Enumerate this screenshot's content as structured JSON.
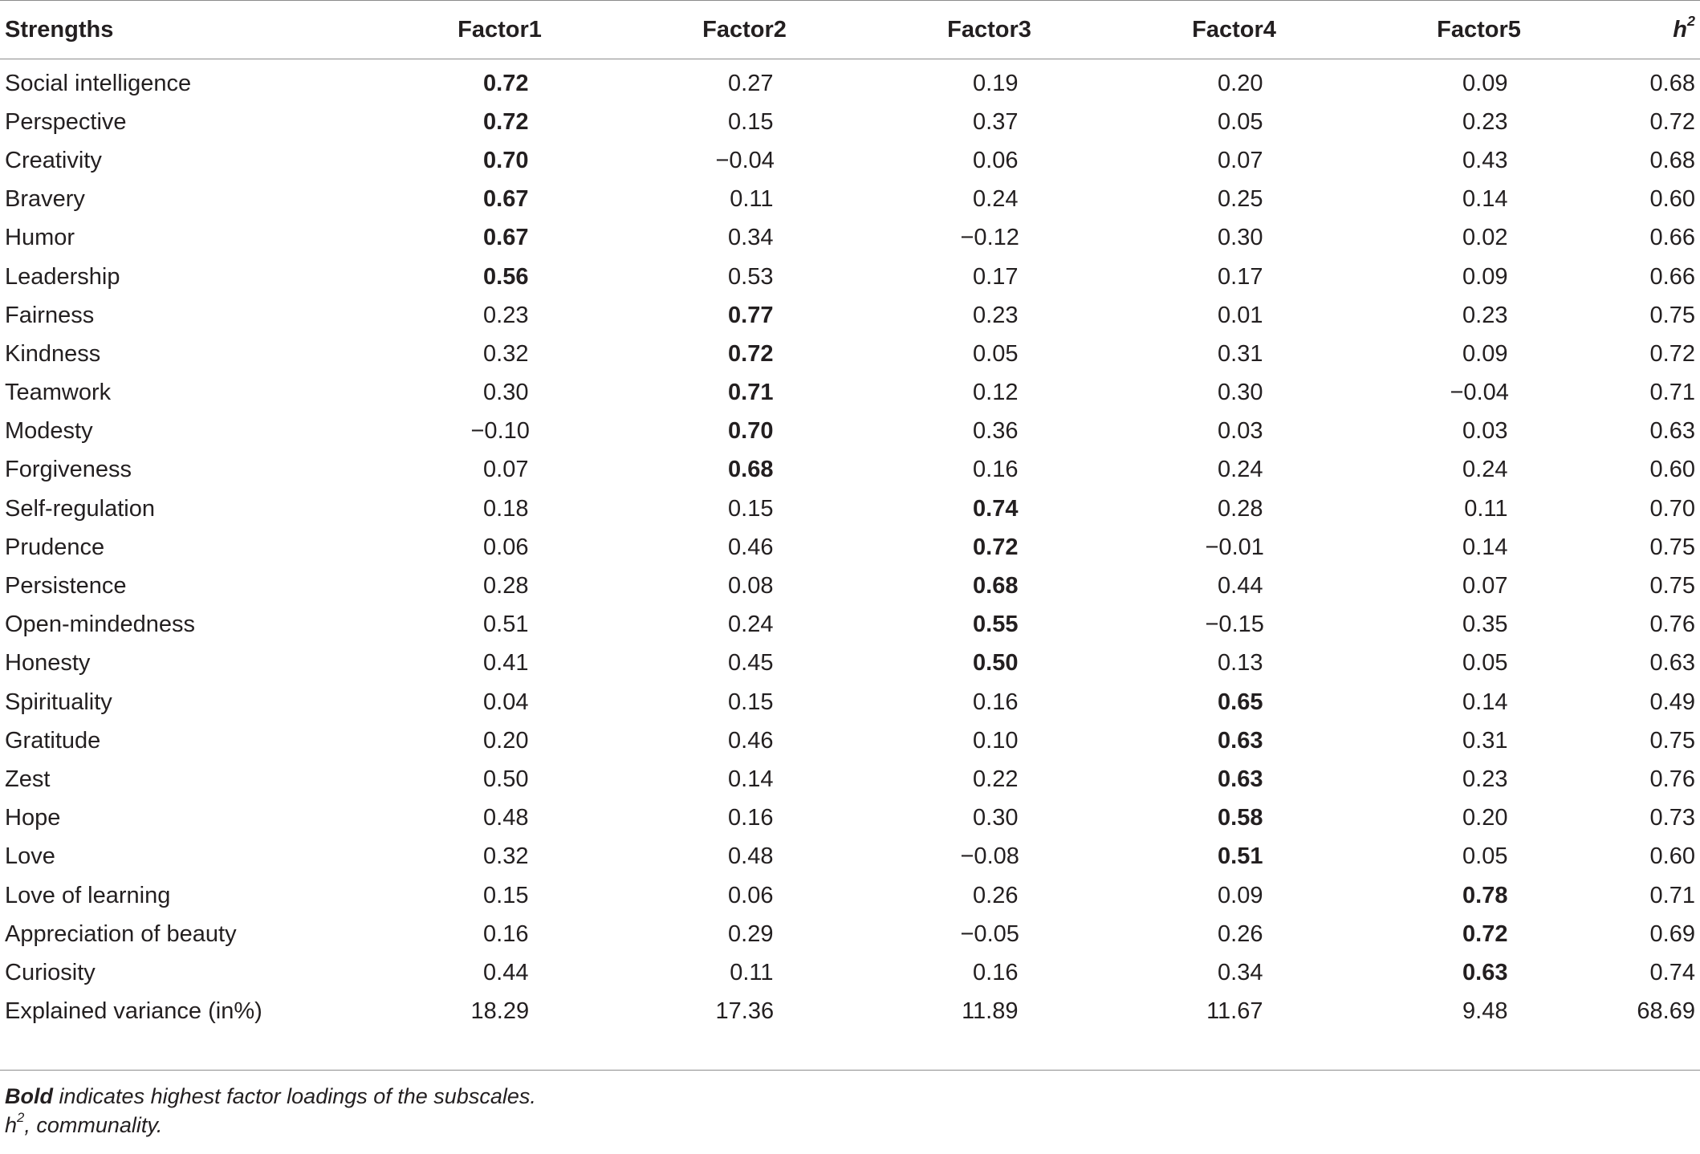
{
  "table": {
    "headers": {
      "strengths": "Strengths",
      "factors": [
        "Factor1",
        "Factor2",
        "Factor3",
        "Factor4",
        "Factor5"
      ],
      "h2_base": "h",
      "h2_sup": "2"
    },
    "rows": [
      {
        "name": "Social intelligence",
        "values": [
          "0.72",
          "0.27",
          "0.19",
          "0.20",
          "0.09"
        ],
        "h2": "0.68",
        "bold": 0
      },
      {
        "name": "Perspective",
        "values": [
          "0.72",
          "0.15",
          "0.37",
          "0.05",
          "0.23"
        ],
        "h2": "0.72",
        "bold": 0
      },
      {
        "name": "Creativity",
        "values": [
          "0.70",
          "−0.04",
          "0.06",
          "0.07",
          "0.43"
        ],
        "h2": "0.68",
        "bold": 0
      },
      {
        "name": "Bravery",
        "values": [
          "0.67",
          "0.11",
          "0.24",
          "0.25",
          "0.14"
        ],
        "h2": "0.60",
        "bold": 0
      },
      {
        "name": "Humor",
        "values": [
          "0.67",
          "0.34",
          "−0.12",
          "0.30",
          "0.02"
        ],
        "h2": "0.66",
        "bold": 0
      },
      {
        "name": "Leadership",
        "values": [
          "0.56",
          "0.53",
          "0.17",
          "0.17",
          "0.09"
        ],
        "h2": "0.66",
        "bold": 0
      },
      {
        "name": "Fairness",
        "values": [
          "0.23",
          "0.77",
          "0.23",
          "0.01",
          "0.23"
        ],
        "h2": "0.75",
        "bold": 1
      },
      {
        "name": "Kindness",
        "values": [
          "0.32",
          "0.72",
          "0.05",
          "0.31",
          "0.09"
        ],
        "h2": "0.72",
        "bold": 1
      },
      {
        "name": "Teamwork",
        "values": [
          "0.30",
          "0.71",
          "0.12",
          "0.30",
          "−0.04"
        ],
        "h2": "0.71",
        "bold": 1
      },
      {
        "name": "Modesty",
        "values": [
          "−0.10",
          "0.70",
          "0.36",
          "0.03",
          "0.03"
        ],
        "h2": "0.63",
        "bold": 1
      },
      {
        "name": "Forgiveness",
        "values": [
          "0.07",
          "0.68",
          "0.16",
          "0.24",
          "0.24"
        ],
        "h2": "0.60",
        "bold": 1
      },
      {
        "name": "Self-regulation",
        "values": [
          "0.18",
          "0.15",
          "0.74",
          "0.28",
          "0.11"
        ],
        "h2": "0.70",
        "bold": 2
      },
      {
        "name": "Prudence",
        "values": [
          "0.06",
          "0.46",
          "0.72",
          "−0.01",
          "0.14"
        ],
        "h2": "0.75",
        "bold": 2
      },
      {
        "name": "Persistence",
        "values": [
          "0.28",
          "0.08",
          "0.68",
          "0.44",
          "0.07"
        ],
        "h2": "0.75",
        "bold": 2
      },
      {
        "name": "Open-mindedness",
        "values": [
          "0.51",
          "0.24",
          "0.55",
          "−0.15",
          "0.35"
        ],
        "h2": "0.76",
        "bold": 2
      },
      {
        "name": "Honesty",
        "values": [
          "0.41",
          "0.45",
          "0.50",
          "0.13",
          "0.05"
        ],
        "h2": "0.63",
        "bold": 2
      },
      {
        "name": "Spirituality",
        "values": [
          "0.04",
          "0.15",
          "0.16",
          "0.65",
          "0.14"
        ],
        "h2": "0.49",
        "bold": 3
      },
      {
        "name": "Gratitude",
        "values": [
          "0.20",
          "0.46",
          "0.10",
          "0.63",
          "0.31"
        ],
        "h2": "0.75",
        "bold": 3
      },
      {
        "name": "Zest",
        "values": [
          "0.50",
          "0.14",
          "0.22",
          "0.63",
          "0.23"
        ],
        "h2": "0.76",
        "bold": 3
      },
      {
        "name": "Hope",
        "values": [
          "0.48",
          "0.16",
          "0.30",
          "0.58",
          "0.20"
        ],
        "h2": "0.73",
        "bold": 3
      },
      {
        "name": "Love",
        "values": [
          "0.32",
          "0.48",
          "−0.08",
          "0.51",
          "0.05"
        ],
        "h2": "0.60",
        "bold": 3
      },
      {
        "name": "Love of learning",
        "values": [
          "0.15",
          "0.06",
          "0.26",
          "0.09",
          "0.78"
        ],
        "h2": "0.71",
        "bold": 4
      },
      {
        "name": "Appreciation of beauty",
        "values": [
          "0.16",
          "0.29",
          "−0.05",
          "0.26",
          "0.72"
        ],
        "h2": "0.69",
        "bold": 4
      },
      {
        "name": "Curiosity",
        "values": [
          "0.44",
          "0.11",
          "0.16",
          "0.34",
          "0.63"
        ],
        "h2": "0.74",
        "bold": 4
      },
      {
        "name": "Explained variance (in%)",
        "values": [
          "18.29",
          "17.36",
          "11.89",
          "11.67",
          "9.48"
        ],
        "h2": "68.69",
        "bold": -1
      }
    ]
  },
  "footnotes": {
    "bold_word": "Bold",
    "bold_text": " indicates highest factor loadings of the subscales.",
    "h2_base": "h",
    "h2_sup": "2",
    "h2_text": ", communality."
  }
}
